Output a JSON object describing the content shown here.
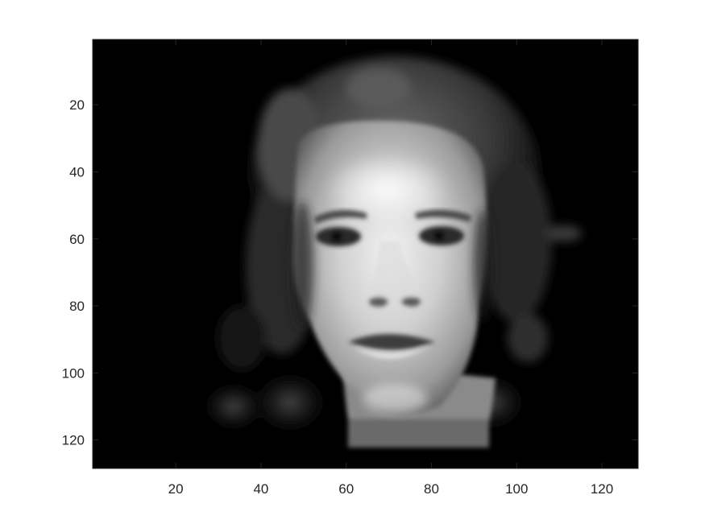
{
  "chart_data": {
    "type": "image",
    "colormap": "gray",
    "title": "",
    "xlabel": "",
    "ylabel": "",
    "xlim": [
      0.5,
      128.5
    ],
    "ylim": [
      0.5,
      128.5
    ],
    "y_direction": "reverse",
    "grid": false,
    "x_ticks": [
      20,
      40,
      60,
      80,
      100,
      120
    ],
    "y_ticks": [
      20,
      40,
      60,
      80,
      100,
      120
    ],
    "x_tick_labels": [
      "20",
      "40",
      "60",
      "80",
      "100",
      "120"
    ],
    "y_tick_labels": [
      "20",
      "40",
      "60",
      "80",
      "100",
      "120"
    ],
    "image_content": "grayscale face on black background",
    "colors": {
      "background": "#000000",
      "axes": "#262626",
      "figure": "#ffffff"
    }
  }
}
